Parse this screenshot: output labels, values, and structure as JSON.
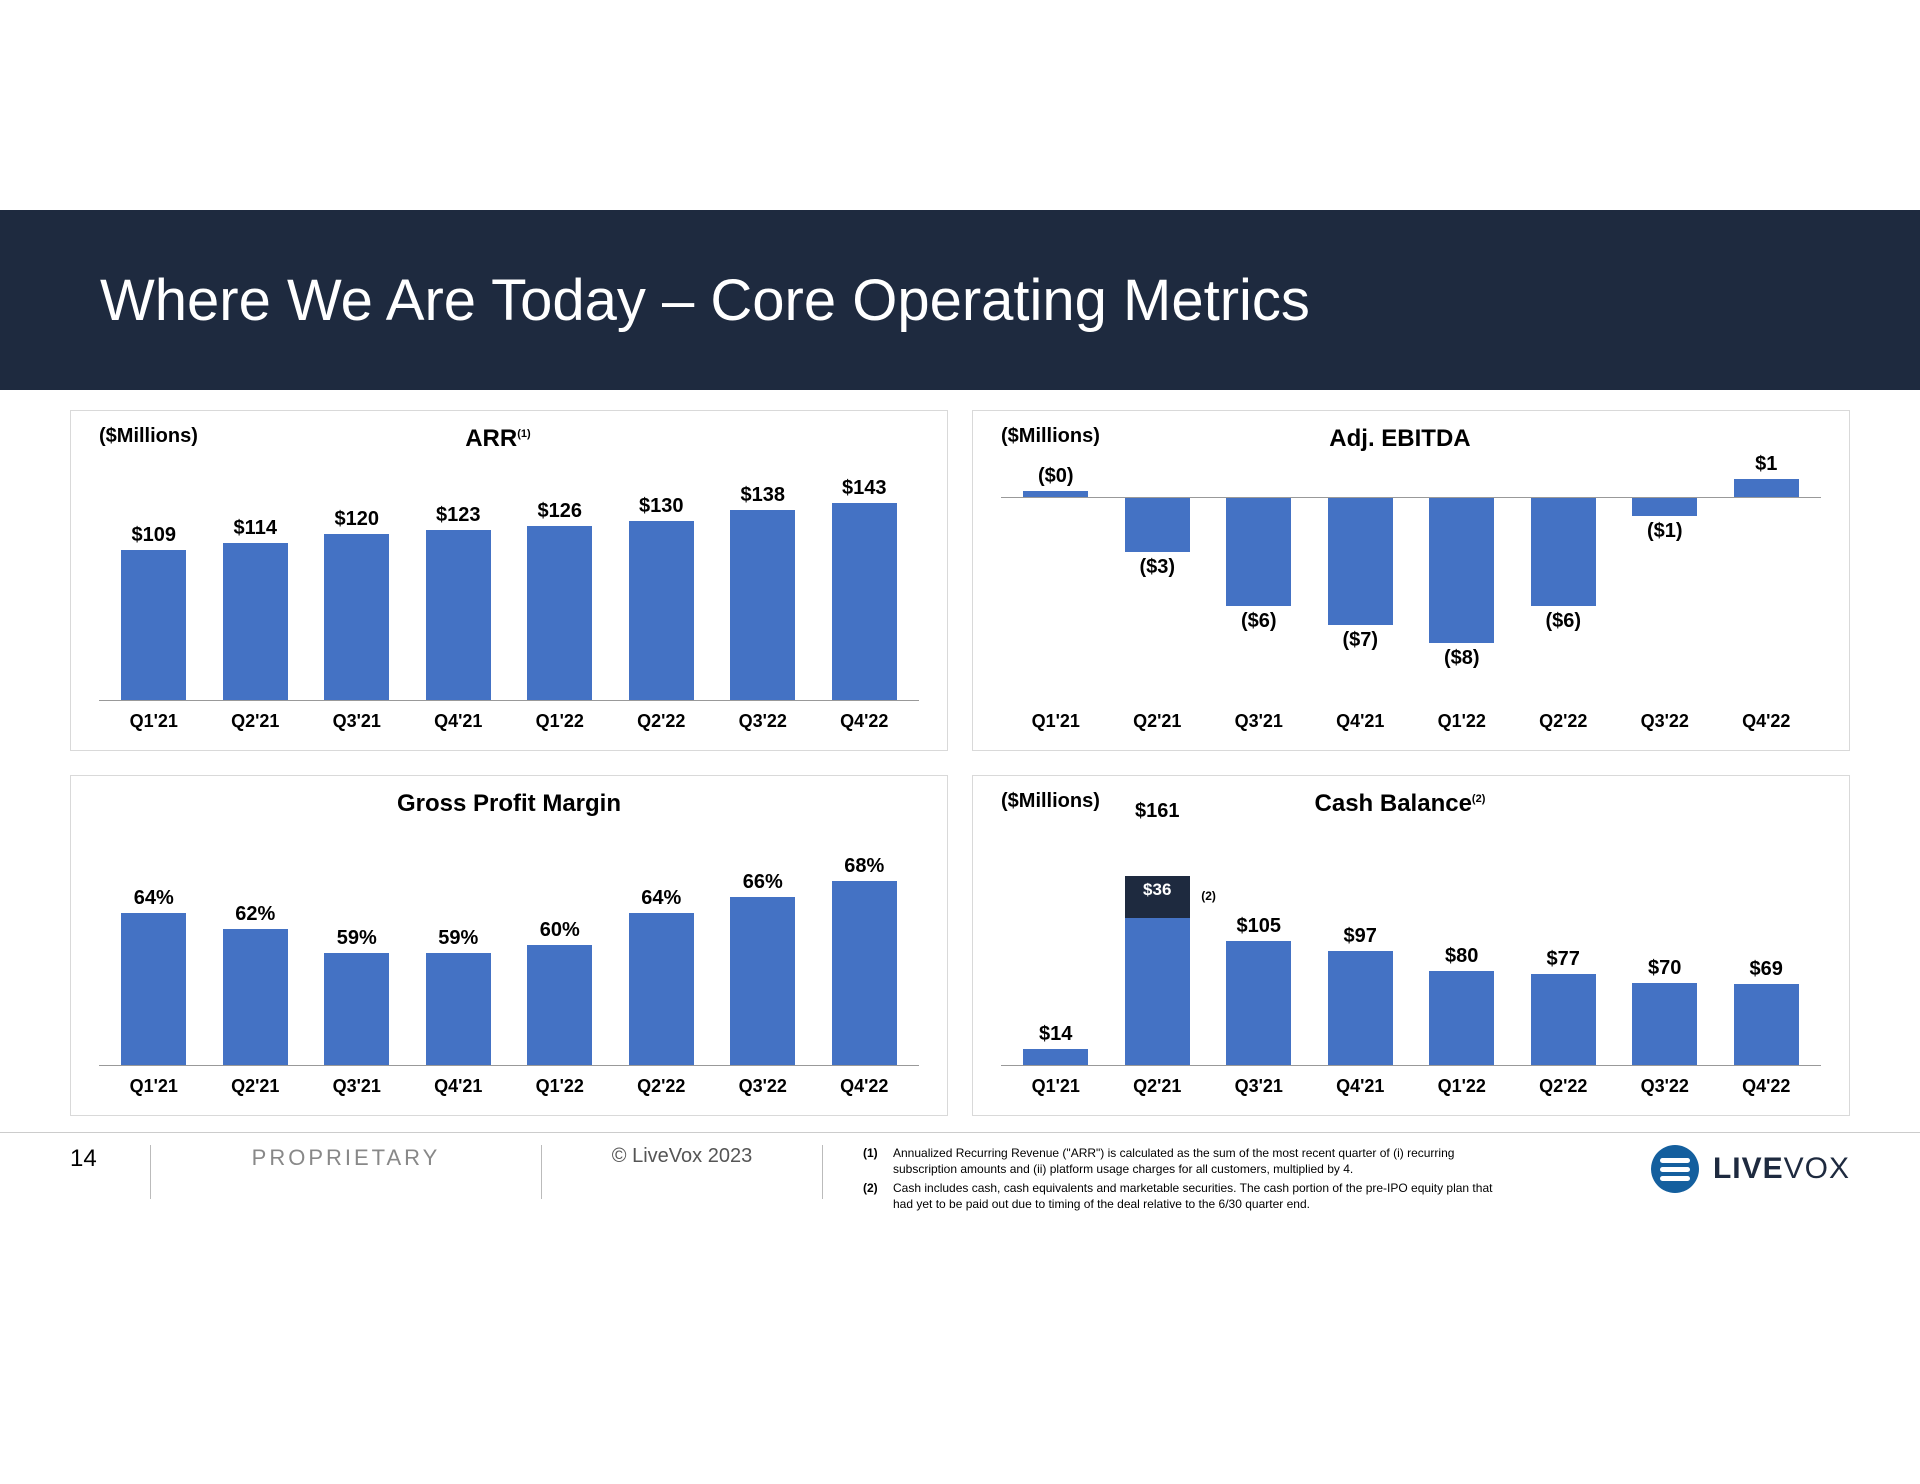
{
  "header": {
    "title": "Where We Are Today – Core Operating Metrics"
  },
  "categories": [
    "Q1'21",
    "Q2'21",
    "Q3'21",
    "Q4'21",
    "Q1'22",
    "Q2'22",
    "Q3'22",
    "Q4'22"
  ],
  "quad": {
    "arr": {
      "type": "bar",
      "y_caption": "($Millions)",
      "title": "ARR",
      "title_sup": "(1)",
      "values": [
        109,
        114,
        120,
        123,
        126,
        130,
        138,
        143
      ],
      "labels": [
        "$109",
        "$114",
        "$120",
        "$123",
        "$126",
        "$130",
        "$138",
        "$143"
      ],
      "bar_color": "#4472c4",
      "ymax": 145,
      "label_fontsize": 20
    },
    "ebitda": {
      "type": "bar-diverging",
      "y_caption": "($Millions)",
      "title": "Adj. EBITDA",
      "values": [
        0,
        -3,
        -6,
        -7,
        -8,
        -6,
        -1,
        1
      ],
      "labels": [
        "($0)",
        "($3)",
        "($6)",
        "($7)",
        "($8)",
        "($6)",
        "($1)",
        "$1"
      ],
      "bar_color": "#4472c4",
      "ymin": -9,
      "ymax": 2,
      "label_fontsize": 20
    },
    "gpm": {
      "type": "bar",
      "y_caption": "",
      "title": "Gross Profit Margin",
      "values": [
        64,
        62,
        59,
        59,
        60,
        64,
        66,
        68
      ],
      "labels": [
        "64%",
        "62%",
        "59%",
        "59%",
        "60%",
        "64%",
        "66%",
        "68%"
      ],
      "bar_color": "#4472c4",
      "baseline": 45,
      "ymax": 70,
      "label_fontsize": 20
    },
    "cash": {
      "type": "bar-stacked",
      "y_caption": "($Millions)",
      "title": "Cash Balance",
      "title_sup": "(2)",
      "values": [
        14,
        161,
        105,
        97,
        80,
        77,
        70,
        69
      ],
      "labels": [
        "$14",
        "$161",
        "$105",
        "$97",
        "$80",
        "$77",
        "$70",
        "$69"
      ],
      "stack_idx": 1,
      "stack_top_value": 36,
      "stack_top_label": "$36",
      "stack_top_sup": "(2)",
      "stack_top_color": "#1e2a3f",
      "bar_color": "#4472c4",
      "ymax": 170,
      "label_fontsize": 20
    }
  },
  "footer": {
    "page": "14",
    "proprietary": "PROPRIETARY",
    "copyright": "© LiveVox 2023",
    "notes": [
      {
        "num": "(1)",
        "text": "Annualized Recurring Revenue (\"ARR\") is calculated as the sum of the most recent quarter of (i) recurring subscription amounts and (ii) platform usage charges for all customers, multiplied by 4."
      },
      {
        "num": "(2)",
        "text": "Cash includes cash, cash equivalents and marketable securities. The cash portion of the pre-IPO equity plan that had yet to be paid out due to timing of the deal relative to the 6/30 quarter end."
      }
    ],
    "brand_bold": "LIVE",
    "brand_light": "VOX"
  },
  "colors": {
    "header_bg": "#1e2a3f",
    "bar": "#4472c4",
    "stack_dark": "#1e2a3f",
    "panel_border": "#d9d9d9",
    "text": "#000000"
  }
}
